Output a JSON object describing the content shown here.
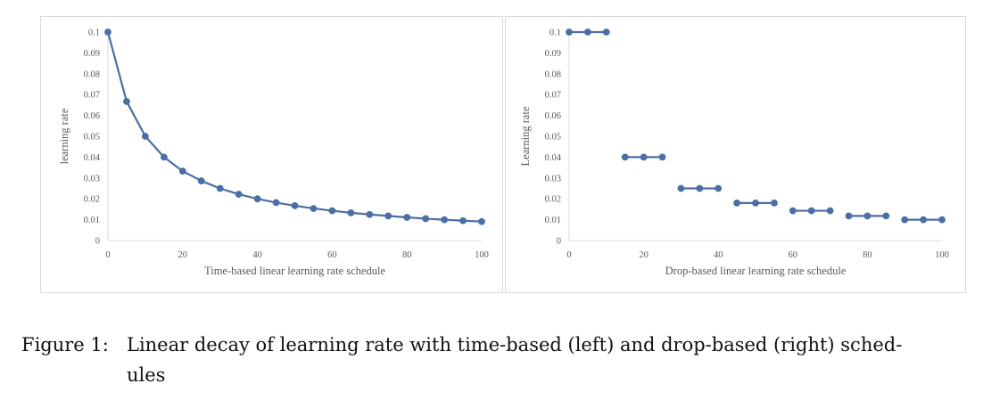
{
  "figure": {
    "number_label": "Figure 1:",
    "caption_line1": "Linear decay of learning rate with time-based (left) and drop-based (right) sched-",
    "caption_line2": "ules"
  },
  "chart_data": [
    {
      "type": "line",
      "title": "",
      "xlabel": "Time-based linear learning rate schedule",
      "ylabel": "learning rate",
      "xlim": [
        0,
        100
      ],
      "ylim": [
        0,
        0.1
      ],
      "xticks": [
        0,
        20,
        40,
        60,
        80,
        100
      ],
      "yticks": [
        0,
        0.01,
        0.02,
        0.03,
        0.04,
        0.05,
        0.06,
        0.07,
        0.08,
        0.09,
        0.1
      ],
      "grid": false,
      "color": "#4a6fa5",
      "series": [
        {
          "name": "time-based",
          "connected": true,
          "x": [
            0,
            5,
            10,
            15,
            20,
            25,
            30,
            35,
            40,
            45,
            50,
            55,
            60,
            65,
            70,
            75,
            80,
            85,
            90,
            95,
            100
          ],
          "y": [
            0.1,
            0.0667,
            0.05,
            0.04,
            0.0333,
            0.0286,
            0.025,
            0.0222,
            0.02,
            0.0182,
            0.0167,
            0.0154,
            0.0143,
            0.0133,
            0.0125,
            0.0118,
            0.0111,
            0.0105,
            0.01,
            0.0095,
            0.0091
          ]
        }
      ]
    },
    {
      "type": "line",
      "title": "",
      "xlabel": "Drop-based linear learning rate schedule",
      "ylabel": "Learning rate",
      "xlim": [
        0,
        100
      ],
      "ylim": [
        0,
        0.1
      ],
      "xticks": [
        0,
        20,
        40,
        60,
        80,
        100
      ],
      "yticks": [
        0,
        0.01,
        0.02,
        0.03,
        0.04,
        0.05,
        0.06,
        0.07,
        0.08,
        0.09,
        0.1
      ],
      "grid": false,
      "color": "#4a6fa5",
      "series": [
        {
          "name": "drop-based",
          "connected": "within-step",
          "steps": [
            {
              "x": [
                0,
                5,
                10
              ],
              "y": [
                0.1,
                0.1,
                0.1
              ]
            },
            {
              "x": [
                15,
                20,
                25
              ],
              "y": [
                0.04,
                0.04,
                0.04
              ]
            },
            {
              "x": [
                30,
                35,
                40
              ],
              "y": [
                0.025,
                0.025,
                0.025
              ]
            },
            {
              "x": [
                45,
                50,
                55
              ],
              "y": [
                0.018,
                0.018,
                0.018
              ]
            },
            {
              "x": [
                60,
                65,
                70
              ],
              "y": [
                0.0143,
                0.0143,
                0.0143
              ]
            },
            {
              "x": [
                75,
                80,
                85
              ],
              "y": [
                0.0118,
                0.0118,
                0.0118
              ]
            },
            {
              "x": [
                90,
                95,
                100
              ],
              "y": [
                0.01,
                0.01,
                0.01
              ]
            }
          ]
        }
      ]
    }
  ]
}
